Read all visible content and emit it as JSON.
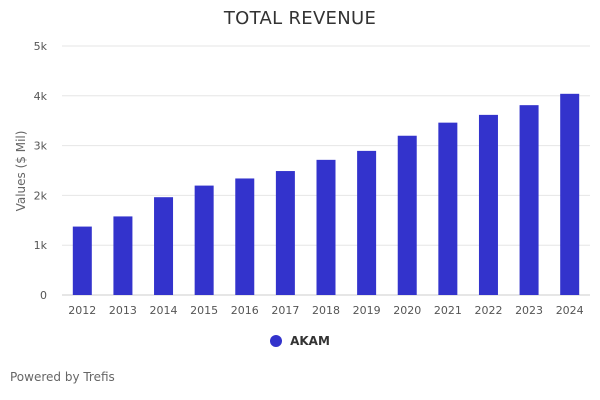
{
  "chart_data": {
    "type": "bar",
    "title": "TOTAL REVENUE",
    "xlabel": "",
    "ylabel": "Values ($ Mil)",
    "categories": [
      "2012",
      "2013",
      "2014",
      "2015",
      "2016",
      "2017",
      "2018",
      "2019",
      "2020",
      "2021",
      "2022",
      "2023",
      "2024"
    ],
    "series": [
      {
        "name": "AKAM",
        "color": "#3333cc",
        "values": [
          1374,
          1578,
          1964,
          2197,
          2340,
          2489,
          2714,
          2894,
          3198,
          3461,
          3617,
          3812,
          4040
        ]
      }
    ],
    "ylim": [
      0,
      5000
    ],
    "yticks": [
      0,
      1000,
      2000,
      3000,
      4000,
      5000
    ],
    "ytick_labels": [
      "0",
      "1k",
      "2k",
      "3k",
      "4k",
      "5k"
    ],
    "grid": true,
    "legend_position": "bottom-center"
  },
  "footer": {
    "credit": "Powered by Trefis"
  }
}
